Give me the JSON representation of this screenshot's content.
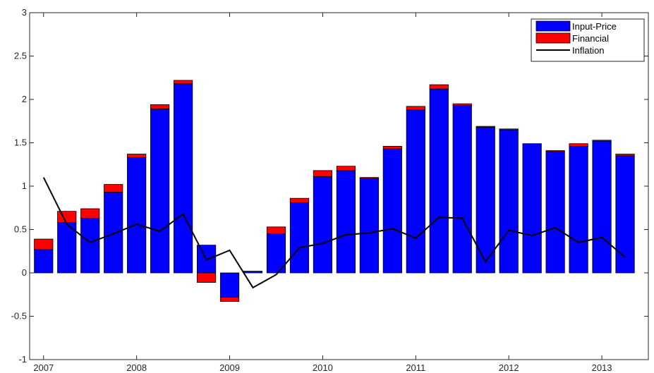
{
  "chart_data": {
    "type": "bar",
    "title": "",
    "xlabel": "",
    "ylabel": "",
    "ylim": [
      -1,
      3
    ],
    "yticks": [
      "-1",
      "-0.5",
      "0",
      "0.5",
      "1",
      "1.5",
      "2",
      "2.5",
      "3"
    ],
    "ytick_values": [
      -1,
      -0.5,
      0,
      0.5,
      1,
      1.5,
      2,
      2.5,
      3
    ],
    "xticks": [
      "2007",
      "2008",
      "2009",
      "2010",
      "2011",
      "2012",
      "2013"
    ],
    "xtick_values": [
      2007,
      2008,
      2009,
      2010,
      2011,
      2012,
      2013
    ],
    "x": [
      2007.0,
      2007.25,
      2007.5,
      2007.75,
      2008.0,
      2008.25,
      2008.5,
      2008.75,
      2009.0,
      2009.25,
      2009.5,
      2009.75,
      2010.0,
      2010.25,
      2010.5,
      2010.75,
      2011.0,
      2011.25,
      2011.5,
      2011.75,
      2012.0,
      2012.25,
      2012.5,
      2012.75,
      2013.0,
      2013.25
    ],
    "stacked": true,
    "grid": false,
    "legend_position": "top-right",
    "series": [
      {
        "name": "Input-Price",
        "kind": "bar",
        "color": "#0000ff",
        "values": [
          0.27,
          0.58,
          0.63,
          0.93,
          1.33,
          1.89,
          2.18,
          0.32,
          -0.28,
          0.02,
          0.45,
          0.81,
          1.11,
          1.18,
          1.09,
          1.43,
          1.88,
          2.12,
          1.93,
          1.68,
          1.65,
          1.49,
          1.4,
          1.46,
          1.52,
          1.35
        ]
      },
      {
        "name": "Financial",
        "kind": "bar",
        "color": "#ff0000",
        "values": [
          0.12,
          0.13,
          0.11,
          0.09,
          0.04,
          0.05,
          0.04,
          -0.11,
          -0.05,
          0.0,
          0.08,
          0.05,
          0.07,
          0.05,
          0.01,
          0.03,
          0.04,
          0.05,
          0.02,
          0.01,
          0.01,
          0.0,
          0.01,
          0.03,
          0.01,
          0.02
        ]
      },
      {
        "name": "Inflation",
        "kind": "line",
        "color": "#000000",
        "values": [
          1.1,
          0.56,
          0.35,
          0.45,
          0.56,
          0.48,
          0.68,
          0.15,
          0.26,
          -0.17,
          -0.02,
          0.29,
          0.34,
          0.44,
          0.46,
          0.51,
          0.4,
          0.64,
          0.63,
          0.13,
          0.49,
          0.43,
          0.52,
          0.35,
          0.41,
          0.18
        ]
      }
    ]
  }
}
